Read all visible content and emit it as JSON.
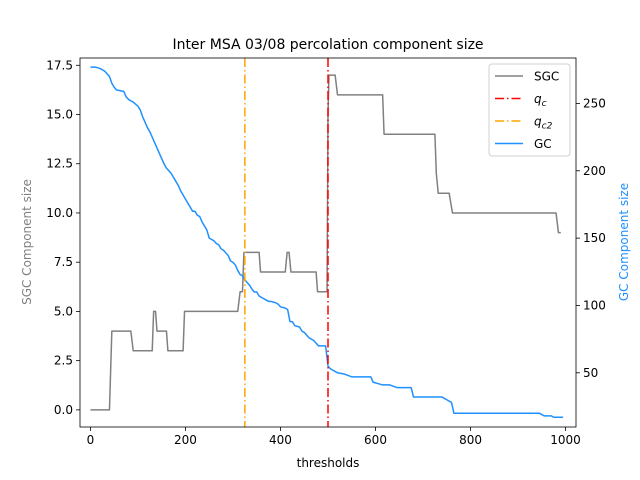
{
  "chart_data": {
    "type": "line",
    "title": "Inter MSA 03/08 percolation component size",
    "xlabel": "thresholds",
    "ylabel_left": "SGC Component size",
    "ylabel_right": "GC Component size",
    "xlim": [
      -22,
      1022
    ],
    "ylim_left": [
      -0.87,
      17.87
    ],
    "ylim_right": [
      9.75,
      283.75
    ],
    "x_ticks": [
      0,
      200,
      400,
      600,
      800,
      1000
    ],
    "y_left_ticks": [
      0.0,
      2.5,
      5.0,
      7.5,
      10.0,
      12.5,
      15.0,
      17.5
    ],
    "y_right_ticks": [
      50,
      100,
      150,
      200,
      250
    ],
    "legend_position": "upper right",
    "grid": false,
    "colors": {
      "sgc": "#808080",
      "gc": "#1e90ff",
      "qc": "#ff0000",
      "qc2": "#ffa500",
      "axis_left_label": "#808080",
      "axis_right_label": "#1e90ff"
    },
    "legend": [
      {
        "key": "sgc",
        "label": "SGC",
        "style": "solid"
      },
      {
        "key": "qc",
        "label": "q",
        "sub": "c",
        "style": "dashdot"
      },
      {
        "key": "qc2",
        "label": "q",
        "sub": "c2",
        "style": "dashdot"
      },
      {
        "key": "gc",
        "label": "GC",
        "style": "solid"
      }
    ],
    "vlines": [
      {
        "key": "qc",
        "x": 500
      },
      {
        "key": "qc2",
        "x": 325
      }
    ],
    "series": [
      {
        "name": "SGC",
        "axis": "left",
        "key": "sgc",
        "points": [
          [
            0,
            0
          ],
          [
            40,
            0
          ],
          [
            45,
            4
          ],
          [
            85,
            4
          ],
          [
            90,
            3
          ],
          [
            130,
            3
          ],
          [
            133,
            5
          ],
          [
            137,
            5
          ],
          [
            140,
            4
          ],
          [
            160,
            4
          ],
          [
            163,
            3
          ],
          [
            195,
            3
          ],
          [
            198,
            5
          ],
          [
            290,
            5
          ],
          [
            310,
            5
          ],
          [
            315,
            6
          ],
          [
            320,
            6
          ],
          [
            323,
            8
          ],
          [
            355,
            8
          ],
          [
            358,
            7
          ],
          [
            410,
            7
          ],
          [
            414,
            8
          ],
          [
            418,
            8
          ],
          [
            422,
            7
          ],
          [
            475,
            7
          ],
          [
            478,
            6
          ],
          [
            495,
            6
          ],
          [
            498,
            6
          ],
          [
            500,
            15
          ],
          [
            502,
            17
          ],
          [
            515,
            17
          ],
          [
            520,
            16
          ],
          [
            605,
            16
          ],
          [
            615,
            16
          ],
          [
            618,
            14
          ],
          [
            720,
            14
          ],
          [
            725,
            14
          ],
          [
            728,
            12
          ],
          [
            732,
            11
          ],
          [
            755,
            11
          ],
          [
            762,
            10
          ],
          [
            980,
            10
          ],
          [
            985,
            9
          ],
          [
            990,
            9
          ]
        ]
      },
      {
        "name": "GC",
        "axis": "right",
        "key": "gc",
        "points": [
          [
            0,
            277
          ],
          [
            10,
            277
          ],
          [
            20,
            276
          ],
          [
            30,
            274
          ],
          [
            40,
            270
          ],
          [
            45,
            265
          ],
          [
            50,
            262
          ],
          [
            55,
            260
          ],
          [
            70,
            259
          ],
          [
            75,
            255
          ],
          [
            80,
            253
          ],
          [
            90,
            251
          ],
          [
            100,
            248
          ],
          [
            105,
            245
          ],
          [
            110,
            240
          ],
          [
            115,
            236
          ],
          [
            120,
            232
          ],
          [
            125,
            229
          ],
          [
            130,
            225
          ],
          [
            135,
            221
          ],
          [
            140,
            217
          ],
          [
            145,
            213
          ],
          [
            150,
            209
          ],
          [
            155,
            205
          ],
          [
            160,
            202
          ],
          [
            165,
            200
          ],
          [
            170,
            198
          ],
          [
            175,
            195
          ],
          [
            180,
            192
          ],
          [
            185,
            189
          ],
          [
            190,
            185
          ],
          [
            195,
            182
          ],
          [
            200,
            179
          ],
          [
            205,
            176
          ],
          [
            210,
            173
          ],
          [
            215,
            170
          ],
          [
            220,
            170
          ],
          [
            225,
            167
          ],
          [
            230,
            166
          ],
          [
            235,
            162
          ],
          [
            240,
            159
          ],
          [
            245,
            156
          ],
          [
            250,
            150
          ],
          [
            255,
            149
          ],
          [
            260,
            148
          ],
          [
            265,
            146
          ],
          [
            270,
            145
          ],
          [
            275,
            142
          ],
          [
            280,
            141
          ],
          [
            285,
            139
          ],
          [
            290,
            137
          ],
          [
            295,
            133
          ],
          [
            300,
            132
          ],
          [
            305,
            130
          ],
          [
            310,
            126
          ],
          [
            315,
            123
          ],
          [
            320,
            122
          ],
          [
            325,
            119
          ],
          [
            330,
            117
          ],
          [
            335,
            115
          ],
          [
            340,
            112
          ],
          [
            345,
            110
          ],
          [
            350,
            110
          ],
          [
            355,
            107
          ],
          [
            360,
            106
          ],
          [
            365,
            105
          ],
          [
            370,
            104
          ],
          [
            375,
            103
          ],
          [
            380,
            103
          ],
          [
            390,
            102
          ],
          [
            395,
            101
          ],
          [
            400,
            99
          ],
          [
            410,
            98
          ],
          [
            415,
            97
          ],
          [
            420,
            88
          ],
          [
            425,
            88
          ],
          [
            430,
            85
          ],
          [
            440,
            84
          ],
          [
            445,
            81
          ],
          [
            450,
            80
          ],
          [
            460,
            76
          ],
          [
            470,
            74
          ],
          [
            480,
            70
          ],
          [
            485,
            70
          ],
          [
            490,
            70
          ],
          [
            495,
            70
          ],
          [
            500,
            55
          ],
          [
            505,
            53
          ],
          [
            510,
            52
          ],
          [
            520,
            50
          ],
          [
            535,
            49
          ],
          [
            550,
            47
          ],
          [
            570,
            47
          ],
          [
            590,
            47
          ],
          [
            595,
            43
          ],
          [
            605,
            42
          ],
          [
            615,
            41
          ],
          [
            630,
            41
          ],
          [
            645,
            39
          ],
          [
            660,
            39
          ],
          [
            675,
            39
          ],
          [
            680,
            32
          ],
          [
            700,
            32
          ],
          [
            720,
            32
          ],
          [
            740,
            32
          ],
          [
            750,
            30
          ],
          [
            760,
            28
          ],
          [
            765,
            20
          ],
          [
            800,
            20
          ],
          [
            900,
            20
          ],
          [
            945,
            20
          ],
          [
            950,
            19
          ],
          [
            955,
            18
          ],
          [
            960,
            18
          ],
          [
            970,
            18
          ],
          [
            975,
            17
          ],
          [
            995,
            17
          ]
        ]
      }
    ]
  }
}
